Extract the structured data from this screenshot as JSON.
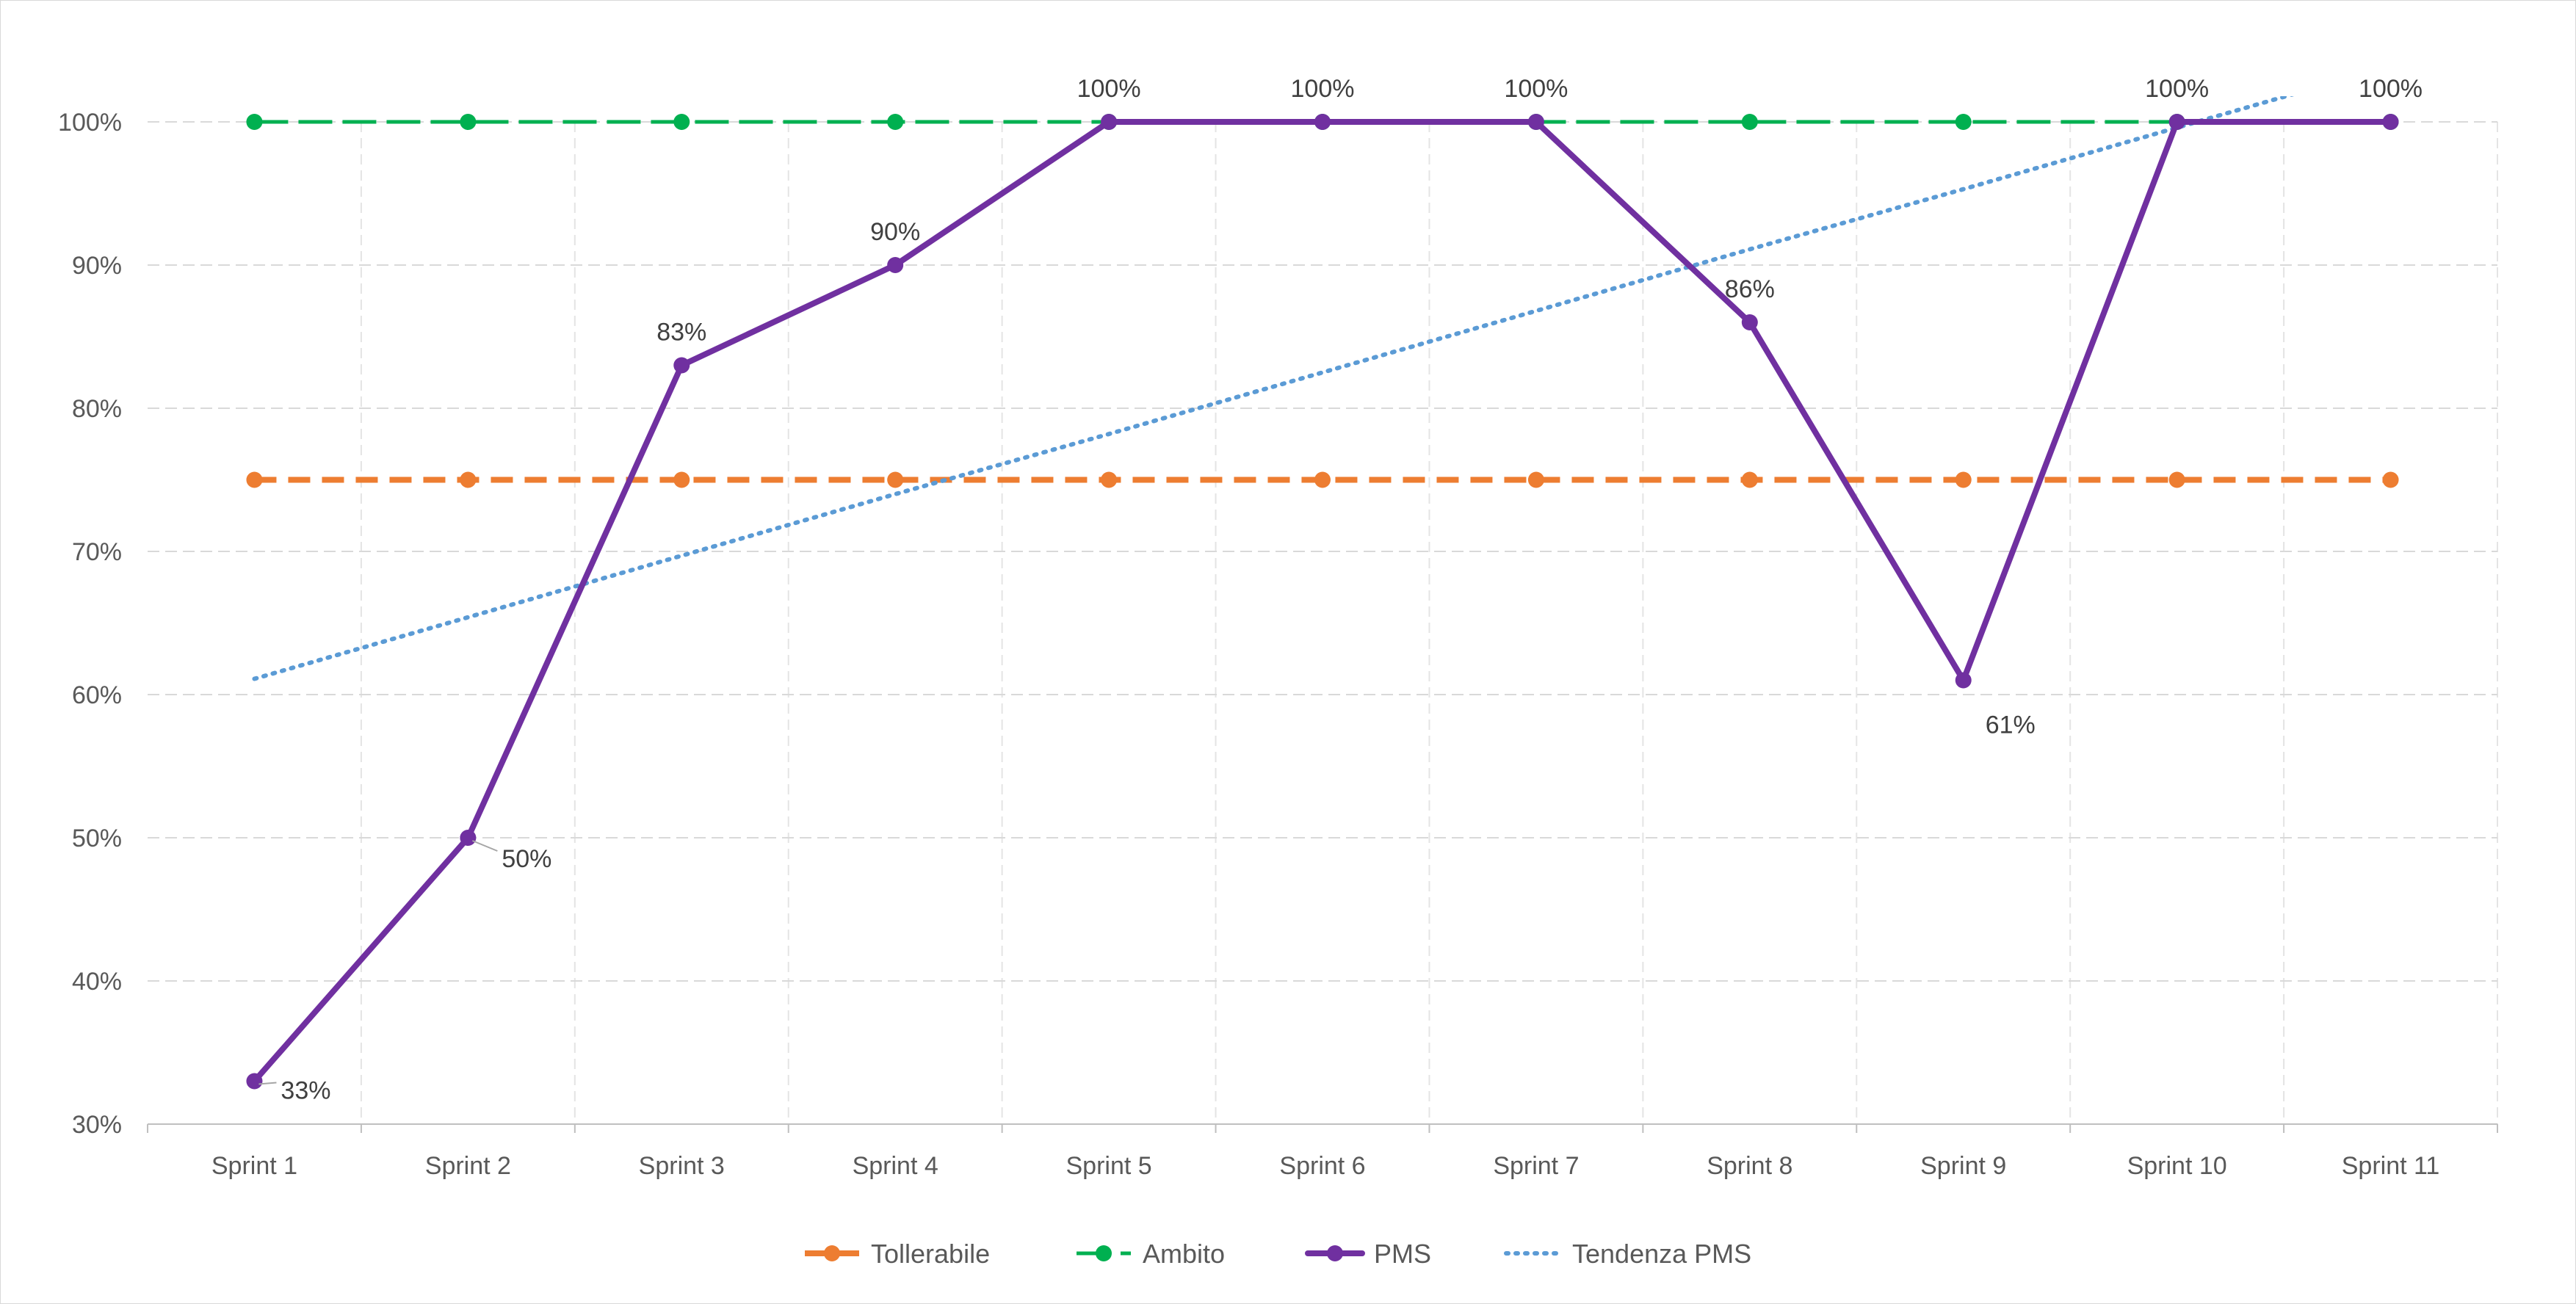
{
  "chart_data": {
    "type": "line",
    "categories": [
      "Sprint 1",
      "Sprint 2",
      "Sprint 3",
      "Sprint 4",
      "Sprint 5",
      "Sprint 6",
      "Sprint 7",
      "Sprint 8",
      "Sprint 9",
      "Sprint 10",
      "Sprint 11"
    ],
    "y_ticks": [
      "30%",
      "40%",
      "50%",
      "60%",
      "70%",
      "80%",
      "90%",
      "100%"
    ],
    "ylim": [
      30,
      100
    ],
    "grid": "on",
    "legend_position": "bottom",
    "series": [
      {
        "name": "Tollerabile",
        "color": "#ED7D31",
        "style": "dashed-with-markers",
        "values": [
          75,
          75,
          75,
          75,
          75,
          75,
          75,
          75,
          75,
          75,
          75
        ]
      },
      {
        "name": "Ambito",
        "color": "#00B050",
        "style": "long-dash-with-markers",
        "values": [
          100,
          100,
          100,
          100,
          100,
          100,
          100,
          100,
          100,
          100,
          100
        ]
      },
      {
        "name": "PMS",
        "color": "#7030A0",
        "style": "solid-with-markers",
        "values": [
          33,
          50,
          83,
          90,
          100,
          100,
          100,
          86,
          61,
          100,
          100
        ],
        "data_labels": [
          "33%",
          "50%",
          "83%",
          "90%",
          "100%",
          "100%",
          "100%",
          "86%",
          "61%",
          "100%",
          "100%"
        ]
      },
      {
        "name": "Tendenza PMS",
        "color": "#5B9BD5",
        "style": "dotted-trendline",
        "values": [
          61.1,
          65.4,
          69.7,
          74.0,
          78.2,
          82.5,
          86.8,
          91.1,
          95.3,
          99.6,
          103.9
        ]
      }
    ]
  }
}
